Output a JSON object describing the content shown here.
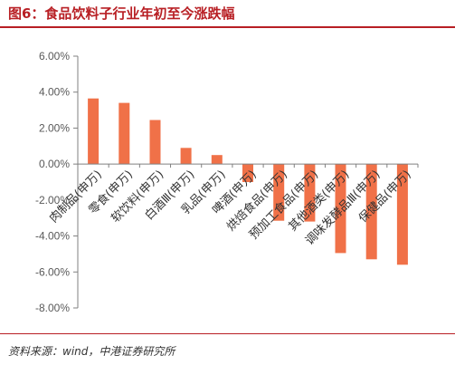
{
  "header": {
    "title": "图6：食品饮料子行业年初至今涨跌幅"
  },
  "footer": {
    "source": "资料来源：wind，中港证券研究所"
  },
  "chart_data": {
    "type": "bar",
    "categories": [
      "肉制品(申万)",
      "零食(申万)",
      "软饮料(申万)",
      "白酒Ⅲ(申万)",
      "乳品(申万)",
      "啤酒(申万)",
      "烘焙食品(申万)",
      "预加工食品(申万)",
      "其他酒类(申万)",
      "调味发酵品Ⅲ(申万)",
      "保健品(申万)"
    ],
    "values": [
      3.65,
      3.4,
      2.45,
      0.9,
      0.5,
      -1.0,
      -3.15,
      -3.2,
      -4.95,
      -5.3,
      -5.6
    ],
    "ylim": [
      -8,
      6
    ],
    "yticks": [
      6,
      4,
      2,
      0,
      -2,
      -4,
      -6,
      -8
    ],
    "ytick_labels": [
      "6.00%",
      "4.00%",
      "2.00%",
      "0.00%",
      "-2.00%",
      "-4.00%",
      "-6.00%",
      "-8.00%"
    ],
    "bar_color": "#f07148",
    "grid": false,
    "legend": "none"
  }
}
